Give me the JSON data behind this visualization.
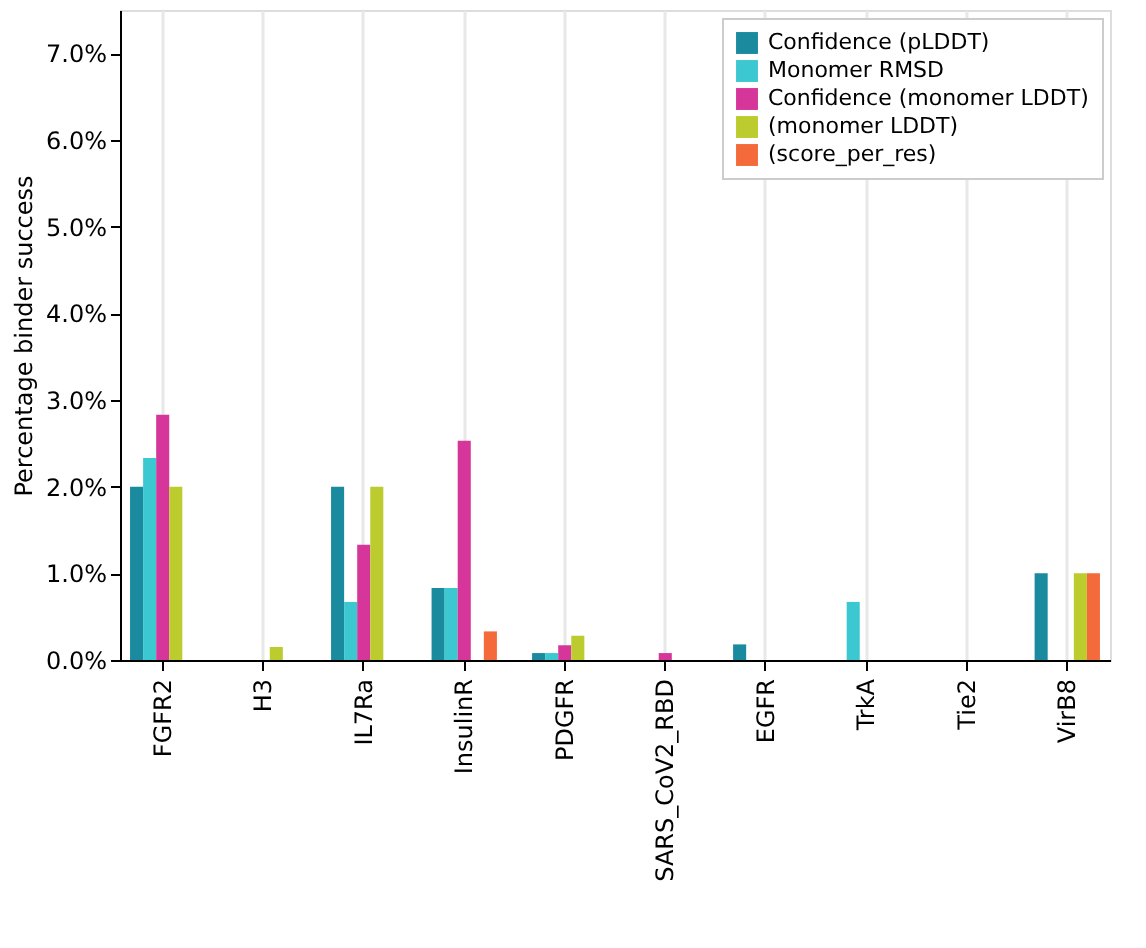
{
  "chart_data": {
    "type": "bar",
    "ylabel": "Percentage binder success",
    "categories": [
      "FGFR2",
      "H3",
      "IL7Ra",
      "InsulinR",
      "PDGFR",
      "SARS_CoV2_RBD",
      "EGFR",
      "TrkA",
      "Tie2",
      "VirB8"
    ],
    "series": [
      {
        "name": "Confidence (pLDDT)",
        "color": "#1a8a9e",
        "values": [
          2.0,
          0,
          2.0,
          0.83,
          0.08,
          0,
          0.18,
          0,
          0,
          1.0
        ]
      },
      {
        "name": "Monomer RMSD",
        "color": "#3cc8d0",
        "values": [
          2.33,
          0,
          0.67,
          0.83,
          0.08,
          0,
          0,
          0.67,
          0,
          0
        ]
      },
      {
        "name": "Confidence (monomer LDDT)",
        "color": "#d6359a",
        "values": [
          2.83,
          0,
          1.33,
          2.53,
          0.17,
          0.08,
          0,
          0,
          0,
          0
        ]
      },
      {
        "name": "(monomer LDDT)",
        "color": "#bccc2e",
        "values": [
          2.0,
          0.15,
          2.0,
          0,
          0.28,
          0,
          0,
          0,
          0,
          1.0
        ]
      },
      {
        "name": "(score_per_res)",
        "color": "#f46a3a",
        "values": [
          0,
          0,
          0,
          0.33,
          0,
          0,
          0,
          0,
          0,
          1.0
        ]
      }
    ],
    "ylim": [
      0,
      7.5
    ],
    "yticks": [
      {
        "value": 0,
        "label": "0.0%"
      },
      {
        "value": 1,
        "label": "1.0%"
      },
      {
        "value": 2,
        "label": "2.0%"
      },
      {
        "value": 3,
        "label": "3.0%"
      },
      {
        "value": 4,
        "label": "4.0%"
      },
      {
        "value": 5,
        "label": "5.0%"
      },
      {
        "value": 6,
        "label": "6.0%"
      },
      {
        "value": 7,
        "label": "7.0%"
      }
    ],
    "grid": "x",
    "legend": "top right"
  }
}
